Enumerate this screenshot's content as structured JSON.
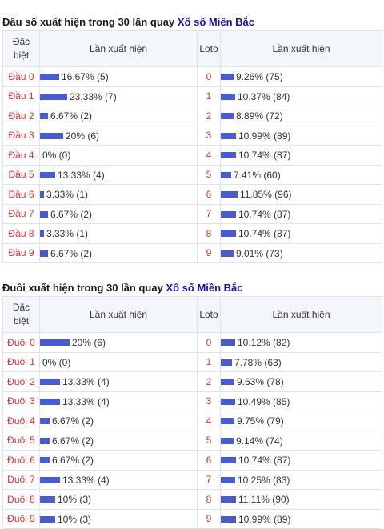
{
  "dau": {
    "title_prefix": "Đầu số xuất hiện trong 30 lần quay",
    "title_link": "Xổ số Miền Bắc",
    "header": {
      "col1": "Đặc biệt",
      "col2": "Lần xuất hiện",
      "col3": "Loto",
      "col4": "Lần xuất hiện"
    },
    "rows": [
      {
        "label": "Đầu 0",
        "pct": 16.67,
        "text": "16.67% (5)",
        "loto": "0",
        "lpct": 9.26,
        "ltext": "9.26% (75)"
      },
      {
        "label": "Đầu 1",
        "pct": 23.33,
        "text": "23.33% (7)",
        "loto": "1",
        "lpct": 10.37,
        "ltext": "10.37% (84)"
      },
      {
        "label": "Đầu 2",
        "pct": 6.67,
        "text": "6.67% (2)",
        "loto": "2",
        "lpct": 8.89,
        "ltext": "8.89% (72)"
      },
      {
        "label": "Đầu 3",
        "pct": 20,
        "text": "20% (6)",
        "loto": "3",
        "lpct": 10.99,
        "ltext": "10.99% (89)"
      },
      {
        "label": "Đầu 4",
        "pct": 0,
        "text": "0% (0)",
        "loto": "4",
        "lpct": 10.74,
        "ltext": "10.74% (87)"
      },
      {
        "label": "Đầu 5",
        "pct": 13.33,
        "text": "13.33% (4)",
        "loto": "5",
        "lpct": 7.41,
        "ltext": "7.41% (60)"
      },
      {
        "label": "Đầu 6",
        "pct": 3.33,
        "text": "3.33% (1)",
        "loto": "6",
        "lpct": 11.85,
        "ltext": "11.85% (96)"
      },
      {
        "label": "Đầu 7",
        "pct": 6.67,
        "text": "6.67% (2)",
        "loto": "7",
        "lpct": 10.74,
        "ltext": "10.74% (87)"
      },
      {
        "label": "Đầu 8",
        "pct": 3.33,
        "text": "3.33% (1)",
        "loto": "8",
        "lpct": 10.74,
        "ltext": "10.74% (87)"
      },
      {
        "label": "Đầu 9",
        "pct": 6.67,
        "text": "6.67% (2)",
        "loto": "9",
        "lpct": 9.01,
        "ltext": "9.01% (73)"
      }
    ]
  },
  "duoi": {
    "title_prefix": "Đuôi xuất hiện trong 30 lần quay",
    "title_link": "Xổ số Miền Bắc",
    "header": {
      "col1": "Đặc biệt",
      "col2": "Lần xuất hiện",
      "col3": "Loto",
      "col4": "Lần xuất hiện"
    },
    "rows": [
      {
        "label": "Đuôi 0",
        "pct": 20,
        "text": "20% (6)",
        "loto": "0",
        "lpct": 10.12,
        "ltext": "10.12% (82)"
      },
      {
        "label": "Đuôi 1",
        "pct": 0,
        "text": "0% (0)",
        "loto": "1",
        "lpct": 7.78,
        "ltext": "7.78% (63)"
      },
      {
        "label": "Đuôi 2",
        "pct": 13.33,
        "text": "13.33% (4)",
        "loto": "2",
        "lpct": 9.63,
        "ltext": "9.63% (78)"
      },
      {
        "label": "Đuôi 3",
        "pct": 13.33,
        "text": "13.33% (4)",
        "loto": "3",
        "lpct": 10.49,
        "ltext": "10.49% (85)"
      },
      {
        "label": "Đuôi 4",
        "pct": 6.67,
        "text": "6.67% (2)",
        "loto": "4",
        "lpct": 9.75,
        "ltext": "9.75% (79)"
      },
      {
        "label": "Đuôi 5",
        "pct": 6.67,
        "text": "6.67% (2)",
        "loto": "5",
        "lpct": 9.14,
        "ltext": "9.14% (74)"
      },
      {
        "label": "Đuôi 6",
        "pct": 6.67,
        "text": "6.67% (2)",
        "loto": "6",
        "lpct": 10.74,
        "ltext": "10.74% (87)"
      },
      {
        "label": "Đuôi 7",
        "pct": 13.33,
        "text": "13.33% (4)",
        "loto": "7",
        "lpct": 10.25,
        "ltext": "10.25% (83)"
      },
      {
        "label": "Đuôi 8",
        "pct": 10,
        "text": "10% (3)",
        "loto": "8",
        "lpct": 11.11,
        "ltext": "11.11% (90)"
      },
      {
        "label": "Đuôi 9",
        "pct": 10,
        "text": "10% (3)",
        "loto": "9",
        "lpct": 10.99,
        "ltext": "10.99% (89)"
      }
    ]
  },
  "colors": {
    "accent": "#4a5bd0",
    "number": "#e03030",
    "link": "#1a0dab",
    "header_bg": "#f3f6fb"
  }
}
